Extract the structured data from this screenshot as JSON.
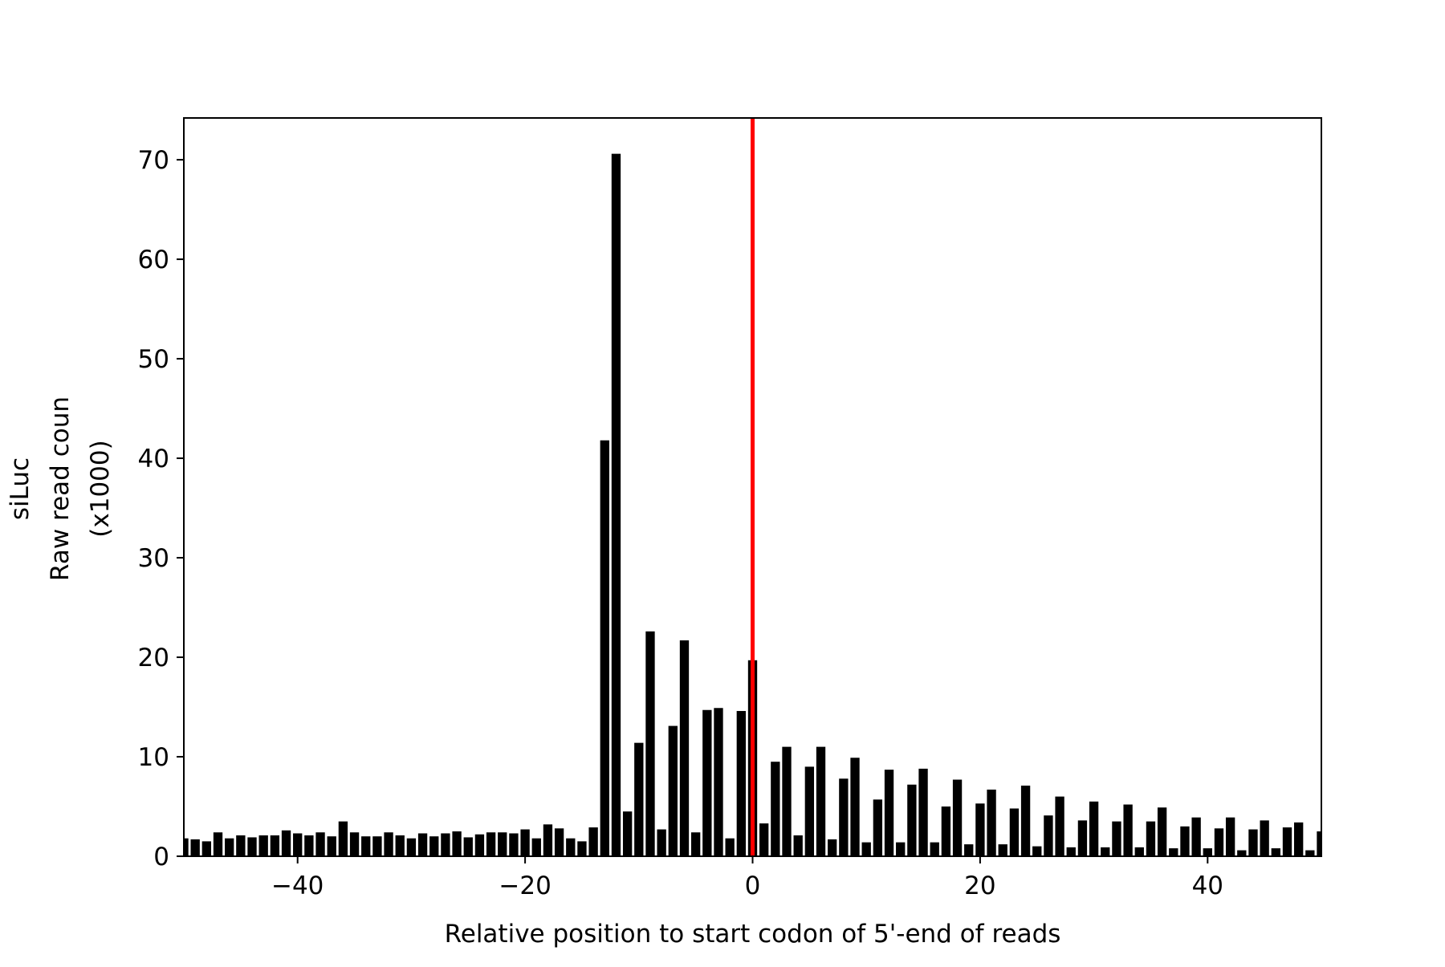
{
  "chart_data": {
    "type": "bar",
    "xlabel": "Relative position to start codon of 5'-end of reads",
    "ylabel_lines": [
      "siLuc",
      "Raw read coun",
      "(x1000)"
    ],
    "xlim": [
      -50,
      50
    ],
    "ylim": [
      0,
      74.2
    ],
    "grid": false,
    "x_ticks": [
      -40,
      -20,
      0,
      20,
      40
    ],
    "x_tick_labels": [
      "−40",
      "−20",
      "0",
      "20",
      "40"
    ],
    "y_ticks": [
      0,
      10,
      20,
      30,
      40,
      50,
      60,
      70
    ],
    "y_tick_labels": [
      "0",
      "10",
      "20",
      "30",
      "40",
      "50",
      "60",
      "70"
    ],
    "reference_line": {
      "x": 0,
      "color": "#ff0000"
    },
    "bar_color": "#000000",
    "x": [
      -50,
      -49,
      -48,
      -47,
      -46,
      -45,
      -44,
      -43,
      -42,
      -41,
      -40,
      -39,
      -38,
      -37,
      -36,
      -35,
      -34,
      -33,
      -32,
      -31,
      -30,
      -29,
      -28,
      -27,
      -26,
      -25,
      -24,
      -23,
      -22,
      -21,
      -20,
      -19,
      -18,
      -17,
      -16,
      -15,
      -14,
      -13,
      -12,
      -11,
      -10,
      -9,
      -8,
      -7,
      -6,
      -5,
      -4,
      -3,
      -2,
      -1,
      0,
      1,
      2,
      3,
      4,
      5,
      6,
      7,
      8,
      9,
      10,
      11,
      12,
      13,
      14,
      15,
      16,
      17,
      18,
      19,
      20,
      21,
      22,
      23,
      24,
      25,
      26,
      27,
      28,
      29,
      30,
      31,
      32,
      33,
      34,
      35,
      36,
      37,
      38,
      39,
      40,
      41,
      42,
      43,
      44,
      45,
      46,
      47,
      48,
      49,
      50
    ],
    "values": [
      1.8,
      1.7,
      1.5,
      2.4,
      1.8,
      2.1,
      1.9,
      2.1,
      2.1,
      2.6,
      2.3,
      2.1,
      2.4,
      2.0,
      3.5,
      2.4,
      2.0,
      2.0,
      2.4,
      2.1,
      1.8,
      2.3,
      2.0,
      2.3,
      2.5,
      1.9,
      2.2,
      2.4,
      2.4,
      2.3,
      2.7,
      1.8,
      3.2,
      2.8,
      1.8,
      1.5,
      2.9,
      41.8,
      70.6,
      4.5,
      11.4,
      22.6,
      2.7,
      13.1,
      21.7,
      2.4,
      14.7,
      14.9,
      1.8,
      14.6,
      19.7,
      3.3,
      9.5,
      11.0,
      2.1,
      9.0,
      11.0,
      1.7,
      7.8,
      9.9,
      1.4,
      5.7,
      8.7,
      1.4,
      7.2,
      8.8,
      1.4,
      5.0,
      7.7,
      1.2,
      5.3,
      6.7,
      1.2,
      4.8,
      7.1,
      1.0,
      4.1,
      6.0,
      0.9,
      3.6,
      5.5,
      0.9,
      3.5,
      5.2,
      0.9,
      3.5,
      4.9,
      0.8,
      3.0,
      3.9,
      0.8,
      2.8,
      3.9,
      0.6,
      2.7,
      3.6,
      0.8,
      2.9,
      3.4,
      0.6,
      2.5
    ]
  }
}
